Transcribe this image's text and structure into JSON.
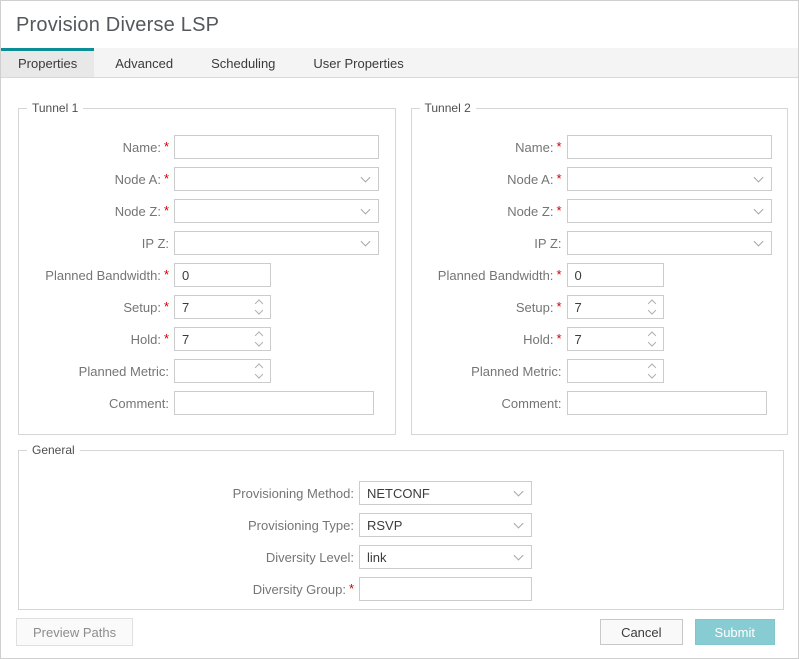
{
  "page": {
    "title": "Provision Diverse LSP"
  },
  "tabs": {
    "items": [
      {
        "label": "Properties",
        "active": true
      },
      {
        "label": "Advanced",
        "active": false
      },
      {
        "label": "Scheduling",
        "active": false
      },
      {
        "label": "User Properties",
        "active": false
      }
    ]
  },
  "ui": {
    "required_marker": "*",
    "accent_teal": "#0c8e96",
    "submit_teal": "#87ccd3",
    "required_red": "#cc0000"
  },
  "tunnel1": {
    "legend": "Tunnel 1",
    "name": {
      "label": "Name:",
      "value": ""
    },
    "node_a": {
      "label": "Node A:",
      "value": ""
    },
    "node_z": {
      "label": "Node Z:",
      "value": ""
    },
    "ip_z": {
      "label": "IP Z:",
      "value": ""
    },
    "planned_bandwidth": {
      "label": "Planned Bandwidth:",
      "value": "0"
    },
    "setup": {
      "label": "Setup:",
      "value": "7"
    },
    "hold": {
      "label": "Hold:",
      "value": "7"
    },
    "planned_metric": {
      "label": "Planned Metric:",
      "value": ""
    },
    "comment": {
      "label": "Comment:",
      "value": ""
    }
  },
  "tunnel2": {
    "legend": "Tunnel 2",
    "name": {
      "label": "Name:",
      "value": ""
    },
    "node_a": {
      "label": "Node A:",
      "value": ""
    },
    "node_z": {
      "label": "Node Z:",
      "value": ""
    },
    "ip_z": {
      "label": "IP Z:",
      "value": ""
    },
    "planned_bandwidth": {
      "label": "Planned Bandwidth:",
      "value": "0"
    },
    "setup": {
      "label": "Setup:",
      "value": "7"
    },
    "hold": {
      "label": "Hold:",
      "value": "7"
    },
    "planned_metric": {
      "label": "Planned Metric:",
      "value": ""
    },
    "comment": {
      "label": "Comment:",
      "value": ""
    }
  },
  "general": {
    "legend": "General",
    "provisioning_method": {
      "label": "Provisioning Method:",
      "value": "NETCONF"
    },
    "provisioning_type": {
      "label": "Provisioning Type:",
      "value": "RSVP"
    },
    "diversity_level": {
      "label": "Diversity Level:",
      "value": "link"
    },
    "diversity_group": {
      "label": "Diversity Group:",
      "value": ""
    }
  },
  "footer": {
    "preview_paths": "Preview Paths",
    "cancel": "Cancel",
    "submit": "Submit"
  }
}
